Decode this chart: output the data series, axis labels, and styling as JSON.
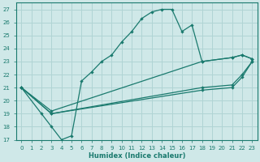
{
  "xlabel": "Humidex (Indice chaleur)",
  "xlim": [
    -0.5,
    23.5
  ],
  "ylim": [
    17,
    27.5
  ],
  "xticks": [
    0,
    1,
    2,
    3,
    4,
    5,
    6,
    7,
    8,
    9,
    10,
    11,
    12,
    13,
    14,
    15,
    16,
    17,
    18,
    19,
    20,
    21,
    22,
    23
  ],
  "yticks": [
    17,
    18,
    19,
    20,
    21,
    22,
    23,
    24,
    25,
    26,
    27
  ],
  "bg_color": "#cfe8e8",
  "line_color": "#1a7a6e",
  "grid_color": "#b0d4d4",
  "lines": [
    {
      "x": [
        0,
        2,
        3,
        4,
        5,
        6,
        7,
        8,
        9,
        10,
        11,
        12,
        13,
        14,
        15,
        16,
        17,
        18,
        21,
        22,
        23
      ],
      "y": [
        21,
        19,
        18,
        17,
        17.3,
        21.5,
        22.2,
        23.0,
        23.5,
        24.5,
        25.3,
        26.3,
        26.8,
        27.0,
        27.0,
        25.3,
        25.8,
        23.0,
        23.3,
        23.5,
        23.2
      ]
    },
    {
      "x": [
        0,
        3,
        18,
        21,
        22,
        23
      ],
      "y": [
        21,
        19.2,
        23.0,
        23.3,
        23.5,
        23.2
      ]
    },
    {
      "x": [
        0,
        3,
        18,
        21,
        22,
        23
      ],
      "y": [
        21,
        19.0,
        21.0,
        21.2,
        22.0,
        23.0
      ]
    },
    {
      "x": [
        0,
        3,
        18,
        21,
        22,
        23
      ],
      "y": [
        21,
        19.0,
        20.8,
        21.0,
        21.8,
        23.0
      ]
    }
  ]
}
